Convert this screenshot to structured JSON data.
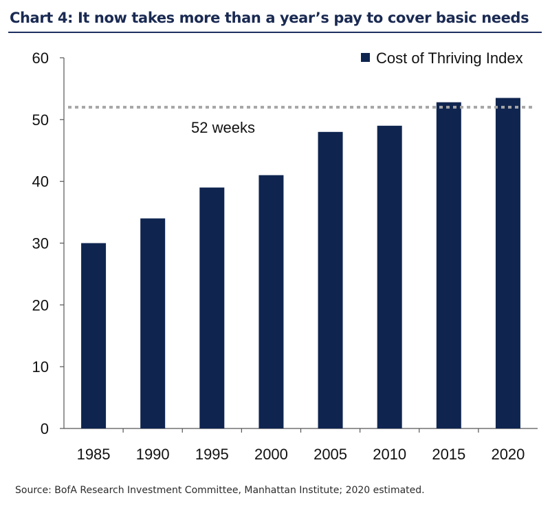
{
  "title": "Chart 4: It now takes more than a year’s pay to cover basic needs",
  "source": "Source: BofA Research Investment Committee, Manhattan Institute; 2020 estimated.",
  "colors": {
    "bar": "#0f2550",
    "title": "#1a2a52",
    "reference_line": "#a6a6a6"
  },
  "chart_data": {
    "type": "bar",
    "categories": [
      "1985",
      "1990",
      "1995",
      "2000",
      "2005",
      "2010",
      "2015",
      "2020"
    ],
    "series": [
      {
        "name": "Cost of Thriving Index",
        "values": [
          30,
          34,
          39,
          41,
          48,
          49,
          52.8,
          53.5
        ]
      }
    ],
    "ylim": [
      0,
      60
    ],
    "yticks": [
      0,
      10,
      20,
      30,
      40,
      50,
      60
    ],
    "xlabel": "",
    "ylabel": "",
    "grid": false,
    "legend": {
      "position": "top-right"
    },
    "reference_line": {
      "value": 52,
      "label": "52 weeks",
      "style": "dotted"
    }
  }
}
